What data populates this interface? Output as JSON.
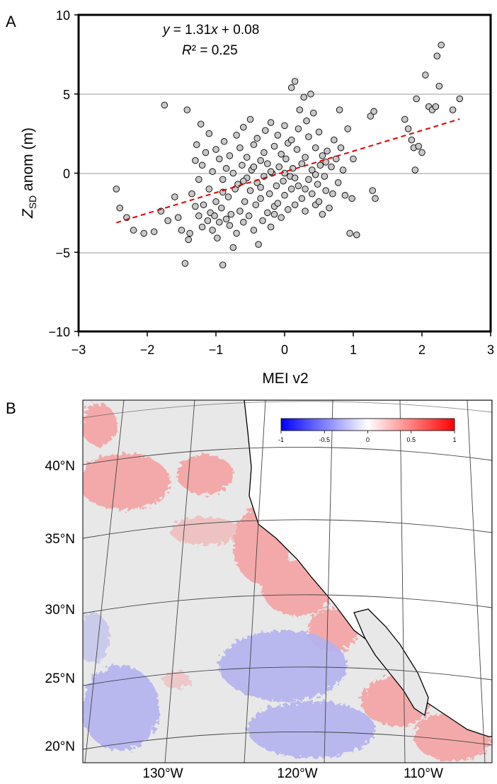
{
  "panel_a": {
    "label": "A",
    "equation": "y = 1.31x + 0.08",
    "r_squared": "R² = 0.25",
    "xlabel": "MEI v2",
    "ylabel_main": "Z",
    "ylabel_sub": "SD",
    "ylabel_rest": " anom (m)"
  },
  "panel_b": {
    "label": "B",
    "colorbar": {
      "ticks": [
        "-1",
        "-0.5",
        "0",
        "0.5",
        "1"
      ],
      "negative_color": "#0000ff",
      "positive_color": "#ff0000",
      "neutral_color": "#ffffff"
    },
    "lat_labels": [
      "40°N",
      "35°N",
      "30°N",
      "25°N",
      "20°N"
    ],
    "lon_labels": [
      "130°W",
      "120°W",
      "110°W"
    ],
    "colors": {
      "ocean_neutral": "#e8e8e8",
      "land": "#ffffff",
      "positive": "#f4a6a6",
      "negative": "#b3b3f0",
      "coast": "#000000"
    }
  },
  "chart_data": [
    {
      "type": "scatter",
      "title": "",
      "xlabel": "MEI v2",
      "ylabel": "Z_SD anom (m)",
      "xlim": [
        -3,
        3
      ],
      "ylim": [
        -10,
        10
      ],
      "xticks": [
        -3,
        -2,
        -1,
        0,
        1,
        2,
        3
      ],
      "yticks": [
        -10,
        -5,
        0,
        5,
        10
      ],
      "xtick_labels": [
        "−3",
        "−2",
        "−1",
        "0",
        "1",
        "2",
        "3"
      ],
      "ytick_labels": [
        "−10",
        "−5",
        "0",
        "5",
        "10"
      ],
      "grid": "horizontal",
      "fit": {
        "slope": 1.31,
        "intercept": 0.08,
        "x_range": [
          -2.45,
          2.55
        ],
        "color": "#e00000",
        "style": "dashed"
      },
      "marker_color": "#c8c8c8",
      "points": [
        [
          -2.45,
          -1.0
        ],
        [
          -2.4,
          -2.2
        ],
        [
          -2.3,
          -2.8
        ],
        [
          -2.2,
          -3.6
        ],
        [
          -2.05,
          -3.8
        ],
        [
          -1.9,
          -3.7
        ],
        [
          -1.8,
          -2.4
        ],
        [
          -1.75,
          4.3
        ],
        [
          -1.7,
          -3.0
        ],
        [
          -1.6,
          -1.5
        ],
        [
          -1.55,
          -2.8
        ],
        [
          -1.5,
          -3.6
        ],
        [
          -1.45,
          -5.7
        ],
        [
          -1.42,
          4.0
        ],
        [
          -1.4,
          -4.2
        ],
        [
          -1.38,
          -3.8
        ],
        [
          -1.35,
          -1.3
        ],
        [
          -1.3,
          0.8
        ],
        [
          -1.3,
          -2.1
        ],
        [
          -1.28,
          1.8
        ],
        [
          -1.25,
          -2.7
        ],
        [
          -1.22,
          3.1
        ],
        [
          -1.2,
          -3.4
        ],
        [
          -1.2,
          0.5
        ],
        [
          -1.18,
          -2.0
        ],
        [
          -1.15,
          1.3
        ],
        [
          -1.12,
          -3.0
        ],
        [
          -1.1,
          -1.0
        ],
        [
          -1.1,
          2.5
        ],
        [
          -1.08,
          -2.5
        ],
        [
          -1.05,
          0.1
        ],
        [
          -1.05,
          -3.6
        ],
        [
          -1.02,
          -2.7
        ],
        [
          -1.0,
          1.5
        ],
        [
          -1.0,
          -1.8
        ],
        [
          -0.98,
          -4.1
        ],
        [
          -0.95,
          -3.1
        ],
        [
          -0.95,
          0.9
        ],
        [
          -0.92,
          -2.2
        ],
        [
          -0.9,
          -0.4
        ],
        [
          -0.9,
          -5.8
        ],
        [
          -0.88,
          2.0
        ],
        [
          -0.85,
          -2.9
        ],
        [
          -0.85,
          0.3
        ],
        [
          -0.82,
          -1.5
        ],
        [
          -0.8,
          -3.3
        ],
        [
          -0.8,
          1.1
        ],
        [
          -0.78,
          -2.6
        ],
        [
          -0.75,
          0.0
        ],
        [
          -0.75,
          -4.7
        ],
        [
          -0.72,
          -1.0
        ],
        [
          -0.7,
          2.4
        ],
        [
          -0.7,
          -3.8
        ],
        [
          -0.68,
          -0.7
        ],
        [
          -0.65,
          1.6
        ],
        [
          -0.65,
          -2.4
        ],
        [
          -0.62,
          0.5
        ],
        [
          -0.6,
          -3.1
        ],
        [
          -0.6,
          2.9
        ],
        [
          -0.58,
          -1.8
        ],
        [
          -0.55,
          -0.3
        ],
        [
          -0.55,
          1.0
        ],
        [
          -0.52,
          -2.7
        ],
        [
          -0.5,
          3.4
        ],
        [
          -0.5,
          -1.1
        ],
        [
          -0.48,
          0.2
        ],
        [
          -0.45,
          -3.6
        ],
        [
          -0.45,
          1.8
        ],
        [
          -0.42,
          -2.0
        ],
        [
          -0.4,
          -0.6
        ],
        [
          -0.4,
          2.2
        ],
        [
          -0.38,
          -4.5
        ],
        [
          -0.35,
          0.8
        ],
        [
          -0.35,
          -1.6
        ],
        [
          -0.32,
          -3.0
        ],
        [
          -0.3,
          1.3
        ],
        [
          -0.3,
          -0.2
        ],
        [
          -0.28,
          2.7
        ],
        [
          -0.25,
          -2.5
        ],
        [
          -0.25,
          0.6
        ],
        [
          -0.22,
          -1.3
        ],
        [
          -0.2,
          3.2
        ],
        [
          -0.2,
          -3.4
        ],
        [
          -0.18,
          0.0
        ],
        [
          -0.15,
          1.7
        ],
        [
          -0.15,
          -2.1
        ],
        [
          -0.12,
          -0.8
        ],
        [
          -0.1,
          2.4
        ],
        [
          -0.1,
          -1.9
        ],
        [
          -0.08,
          0.4
        ],
        [
          -0.05,
          -2.8
        ],
        [
          -0.05,
          1.2
        ],
        [
          -0.02,
          -0.5
        ],
        [
          0.0,
          3.0
        ],
        [
          0.0,
          -1.4
        ],
        [
          0.02,
          0.9
        ],
        [
          0.05,
          -2.3
        ],
        [
          0.05,
          1.9
        ],
        [
          0.08,
          -0.2
        ],
        [
          0.1,
          5.4
        ],
        [
          0.1,
          -1.0
        ],
        [
          0.12,
          0.3
        ],
        [
          0.15,
          5.8
        ],
        [
          0.15,
          -2.0
        ],
        [
          0.18,
          1.5
        ],
        [
          0.2,
          -0.8
        ],
        [
          0.2,
          2.8
        ],
        [
          0.22,
          4.0
        ],
        [
          0.25,
          -1.6
        ],
        [
          0.25,
          0.6
        ],
        [
          0.28,
          4.8
        ],
        [
          0.3,
          -2.4
        ],
        [
          0.3,
          1.0
        ],
        [
          0.32,
          3.3
        ],
        [
          0.35,
          -0.4
        ],
        [
          0.35,
          2.3
        ],
        [
          0.38,
          5.0
        ],
        [
          0.4,
          -1.3
        ],
        [
          0.4,
          0.2
        ],
        [
          0.42,
          3.8
        ],
        [
          0.45,
          -2.0
        ],
        [
          0.45,
          1.6
        ],
        [
          0.48,
          -0.7
        ],
        [
          0.5,
          2.6
        ],
        [
          0.5,
          -1.8
        ],
        [
          0.52,
          0.5
        ],
        [
          0.55,
          -2.6
        ],
        [
          0.55,
          1.1
        ],
        [
          0.58,
          -0.2
        ],
        [
          0.6,
          -1.1
        ],
        [
          0.62,
          1.4
        ],
        [
          0.65,
          -2.2
        ],
        [
          0.68,
          0.4
        ],
        [
          0.7,
          -1.3
        ],
        [
          0.72,
          2.1
        ],
        [
          0.75,
          0.9
        ],
        [
          0.78,
          -0.6
        ],
        [
          0.8,
          4.0
        ],
        [
          0.82,
          1.6
        ],
        [
          0.85,
          0.2
        ],
        [
          0.88,
          -1.4
        ],
        [
          0.92,
          2.8
        ],
        [
          0.95,
          -3.8
        ],
        [
          0.98,
          -1.6
        ],
        [
          1.05,
          -3.9
        ],
        [
          1.25,
          3.6
        ],
        [
          1.28,
          -1.1
        ],
        [
          1.3,
          3.9
        ],
        [
          1.32,
          -1.6
        ],
        [
          1.75,
          3.4
        ],
        [
          1.8,
          2.8
        ],
        [
          1.85,
          2.1
        ],
        [
          1.88,
          1.6
        ],
        [
          1.9,
          0.2
        ],
        [
          1.92,
          4.7
        ],
        [
          1.95,
          1.7
        ],
        [
          2.0,
          1.3
        ],
        [
          2.05,
          6.2
        ],
        [
          2.1,
          4.2
        ],
        [
          2.15,
          4.0
        ],
        [
          2.2,
          4.2
        ],
        [
          2.22,
          7.4
        ],
        [
          2.25,
          5.5
        ],
        [
          2.28,
          8.1
        ],
        [
          2.45,
          4.0
        ],
        [
          2.55,
          4.7
        ],
        [
          -0.2,
          0.1
        ],
        [
          0.0,
          0.0
        ],
        [
          0.15,
          -0.3
        ],
        [
          -0.35,
          -0.9
        ],
        [
          0.6,
          0.7
        ],
        [
          -0.6,
          -0.5
        ],
        [
          0.3,
          -1.0
        ],
        [
          -0.9,
          -1.2
        ],
        [
          1.0,
          0.9
        ],
        [
          -1.25,
          -0.4
        ],
        [
          -0.45,
          0.4
        ],
        [
          0.45,
          -0.1
        ],
        [
          -0.15,
          -2.6
        ],
        [
          0.1,
          2.1
        ]
      ]
    },
    {
      "type": "heatmap",
      "title": "",
      "color_scale": {
        "min": -1,
        "max": 1,
        "colors": [
          "#0000ff",
          "#ffffff",
          "#ff0000"
        ]
      },
      "lat_labels": [
        "40°N",
        "35°N",
        "30°N",
        "25°N",
        "20°N"
      ],
      "lon_labels": [
        "130°W",
        "120°W",
        "110°W"
      ]
    }
  ]
}
